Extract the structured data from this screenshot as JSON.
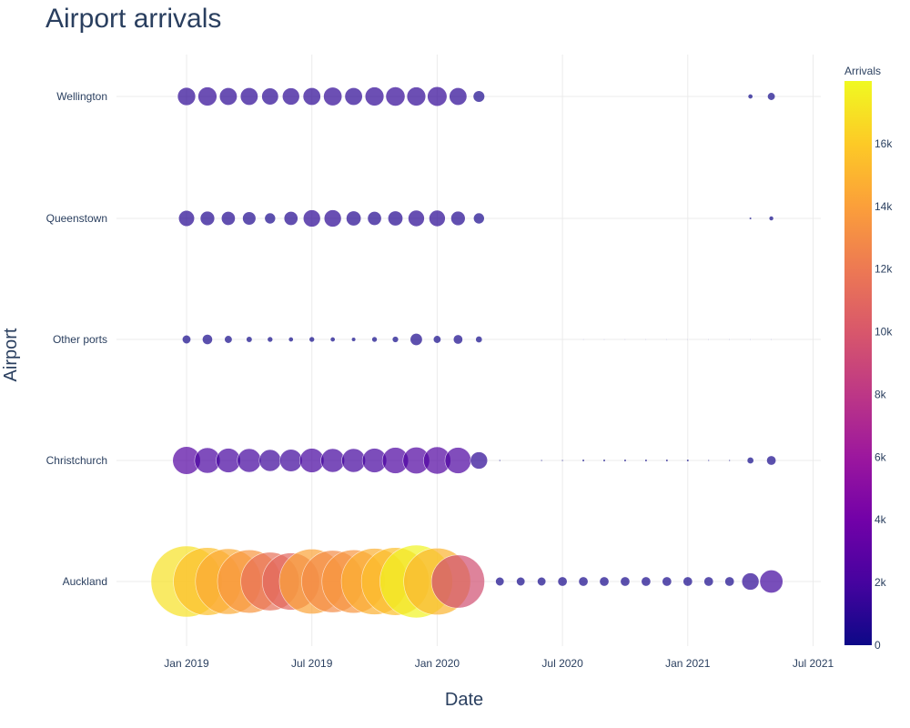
{
  "chart_data": {
    "type": "scatter",
    "title": "Airport arrivals",
    "xlabel": "Date",
    "ylabel": "Airport",
    "x_ticks": [
      "Jan 2019",
      "Jul 2019",
      "Jan 2020",
      "Jul 2020",
      "Jan 2021",
      "Jul 2021"
    ],
    "y_categories": [
      "Auckland",
      "Christchurch",
      "Other ports",
      "Queenstown",
      "Wellington"
    ],
    "colorbar": {
      "title": "Arrivals",
      "range": [
        0,
        18000
      ],
      "ticks": [
        "0",
        "2k",
        "4k",
        "6k",
        "8k",
        "10k",
        "12k",
        "14k",
        "16k"
      ],
      "colorscale": [
        "#0d0887",
        "#46039f",
        "#7201a8",
        "#9c179e",
        "#bd3786",
        "#d8576b",
        "#ed7953",
        "#fb9f3a",
        "#fdca26",
        "#f0f921"
      ]
    },
    "grid": true,
    "dates": [
      "2019-01",
      "2019-02",
      "2019-03",
      "2019-04",
      "2019-05",
      "2019-06",
      "2019-07",
      "2019-08",
      "2019-09",
      "2019-10",
      "2019-11",
      "2019-12",
      "2020-01",
      "2020-02",
      "2020-03",
      "2020-04",
      "2020-05",
      "2020-06",
      "2020-07",
      "2020-08",
      "2020-09",
      "2020-10",
      "2020-11",
      "2020-12",
      "2021-01",
      "2021-02",
      "2021-03",
      "2021-04",
      "2021-05"
    ],
    "series": [
      {
        "name": "Auckland",
        "values": [
          17000,
          15500,
          14500,
          13500,
          11500,
          11000,
          14200,
          13000,
          13500,
          14800,
          15500,
          17800,
          15000,
          9500,
          0,
          250,
          250,
          250,
          300,
          300,
          300,
          300,
          300,
          300,
          300,
          300,
          300,
          1000,
          1800
        ]
      },
      {
        "name": "Christchurch",
        "values": [
          2600,
          2200,
          2000,
          1900,
          1600,
          1700,
          2000,
          1900,
          1900,
          2000,
          2300,
          2400,
          2500,
          2300,
          1000,
          10,
          0,
          10,
          10,
          20,
          20,
          20,
          20,
          20,
          20,
          10,
          10,
          150,
          300
        ]
      },
      {
        "name": "Other ports",
        "values": [
          250,
          350,
          200,
          120,
          100,
          80,
          100,
          80,
          60,
          100,
          130,
          500,
          200,
          300,
          150,
          0,
          0,
          0,
          0,
          2,
          2,
          2,
          2,
          2,
          2,
          2,
          2,
          2,
          2
        ]
      },
      {
        "name": "Queenstown",
        "values": [
          850,
          700,
          650,
          600,
          400,
          650,
          1000,
          1000,
          750,
          650,
          750,
          900,
          900,
          700,
          400,
          0,
          0,
          0,
          0,
          0,
          0,
          0,
          0,
          0,
          0,
          0,
          0,
          20,
          70
        ]
      },
      {
        "name": "Wellington",
        "values": [
          1100,
          1200,
          1050,
          1050,
          950,
          1000,
          1050,
          1150,
          1050,
          1200,
          1250,
          1200,
          1300,
          1050,
          450,
          0,
          0,
          0,
          0,
          0,
          0,
          0,
          0,
          0,
          0,
          0,
          0,
          80,
          200
        ]
      }
    ]
  }
}
